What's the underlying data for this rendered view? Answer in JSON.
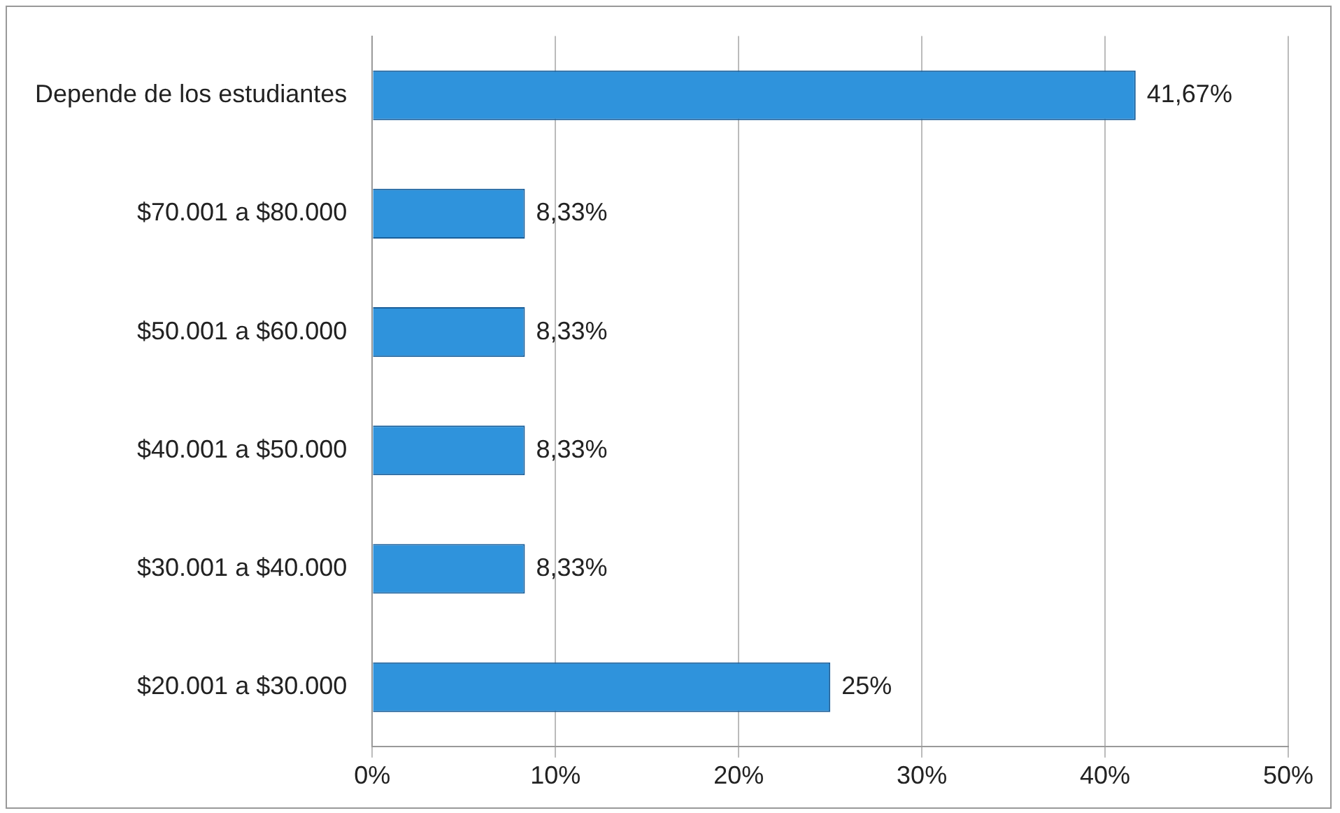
{
  "chart_data": {
    "type": "bar",
    "orientation": "horizontal",
    "categories": [
      "Depende de los estudiantes",
      "$70.001 a $80.000",
      "$50.001 a $60.000",
      "$40.001 a $50.000",
      "$30.001 a $40.000",
      "$20.001 a $30.000"
    ],
    "values": [
      41.67,
      8.33,
      8.33,
      8.33,
      8.33,
      25
    ],
    "value_labels": [
      "41,67%",
      "8,33%",
      "8,33%",
      "8,33%",
      "8,33%",
      "25%"
    ],
    "color": "#2f93dc",
    "xlim": [
      0,
      50
    ],
    "xticks": [
      {
        "value": 0,
        "label": "0%"
      },
      {
        "value": 10,
        "label": "10%"
      },
      {
        "value": 20,
        "label": "20%"
      },
      {
        "value": 30,
        "label": "30%"
      },
      {
        "value": 40,
        "label": "40%"
      },
      {
        "value": 50,
        "label": "50%"
      }
    ],
    "grid": "x",
    "legend": false
  }
}
